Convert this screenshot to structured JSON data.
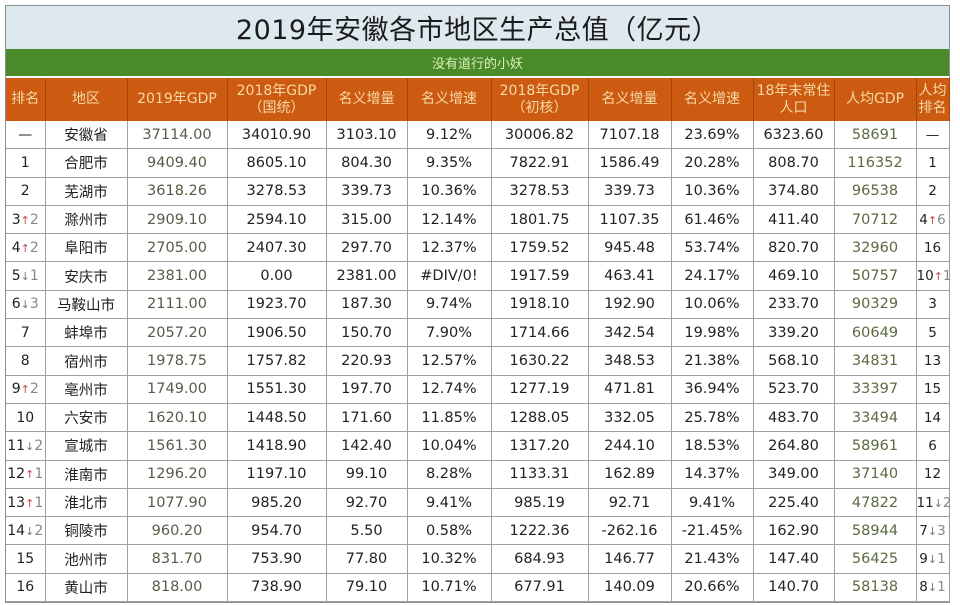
{
  "title": "2019年安徽各市地区生产总值（亿元）",
  "subtitle": "没有道行的小妖",
  "colors": {
    "title_bg": "#dde9ef",
    "subtitle_bg": "#4b8a2a",
    "header_bg": "#cc5a10",
    "header_text": "#f6d9a6"
  },
  "columns": [
    {
      "label": "排名"
    },
    {
      "label": "地区"
    },
    {
      "label": "2019年GDP"
    },
    {
      "label": "2018年GDP",
      "sub": "（国统）"
    },
    {
      "label": "名义增量"
    },
    {
      "label": "名义增速"
    },
    {
      "label": "2018年GDP",
      "sub": "（初核）"
    },
    {
      "label": "名义增量"
    },
    {
      "label": "名义增速"
    },
    {
      "label": "18年末常住",
      "sub": "人口"
    },
    {
      "label": "人均GDP"
    },
    {
      "label": "人均",
      "sub": "排名"
    }
  ],
  "rows": [
    {
      "rank": "—",
      "rank_dir": "",
      "rank_chg": "",
      "region": "安徽省",
      "gdp2019": "37114.00",
      "gdp2018_nbs": "34010.90",
      "inc1": "3103.10",
      "rate1": "9.12%",
      "gdp2018_prelim": "30006.82",
      "inc2": "7107.18",
      "rate2": "23.69%",
      "pop": "6323.60",
      "pc_gdp": "58691",
      "pc_rank": "—",
      "pc_dir": "",
      "pc_chg": ""
    },
    {
      "rank": "1",
      "rank_dir": "",
      "rank_chg": "",
      "region": "合肥市",
      "gdp2019": "9409.40",
      "gdp2018_nbs": "8605.10",
      "inc1": "804.30",
      "rate1": "9.35%",
      "gdp2018_prelim": "7822.91",
      "inc2": "1586.49",
      "rate2": "20.28%",
      "pop": "808.70",
      "pc_gdp": "116352",
      "pc_rank": "1",
      "pc_dir": "",
      "pc_chg": ""
    },
    {
      "rank": "2",
      "rank_dir": "",
      "rank_chg": "",
      "region": "芜湖市",
      "gdp2019": "3618.26",
      "gdp2018_nbs": "3278.53",
      "inc1": "339.73",
      "rate1": "10.36%",
      "gdp2018_prelim": "3278.53",
      "inc2": "339.73",
      "rate2": "10.36%",
      "pop": "374.80",
      "pc_gdp": "96538",
      "pc_rank": "2",
      "pc_dir": "",
      "pc_chg": ""
    },
    {
      "rank": "3",
      "rank_dir": "↑",
      "rank_chg": "2",
      "region": "滁州市",
      "gdp2019": "2909.10",
      "gdp2018_nbs": "2594.10",
      "inc1": "315.00",
      "rate1": "12.14%",
      "gdp2018_prelim": "1801.75",
      "inc2": "1107.35",
      "rate2": "61.46%",
      "pop": "411.40",
      "pc_gdp": "70712",
      "pc_rank": "4",
      "pc_dir": "↑",
      "pc_chg": "6"
    },
    {
      "rank": "4",
      "rank_dir": "↑",
      "rank_chg": "2",
      "region": "阜阳市",
      "gdp2019": "2705.00",
      "gdp2018_nbs": "2407.30",
      "inc1": "297.70",
      "rate1": "12.37%",
      "gdp2018_prelim": "1759.52",
      "inc2": "945.48",
      "rate2": "53.74%",
      "pop": "820.70",
      "pc_gdp": "32960",
      "pc_rank": "16",
      "pc_dir": "",
      "pc_chg": ""
    },
    {
      "rank": "5",
      "rank_dir": "↓",
      "rank_chg": "1",
      "region": "安庆市",
      "gdp2019": "2381.00",
      "gdp2018_nbs": "0.00",
      "inc1": "2381.00",
      "rate1": "#DIV/0!",
      "gdp2018_prelim": "1917.59",
      "inc2": "463.41",
      "rate2": "24.17%",
      "pop": "469.10",
      "pc_gdp": "50757",
      "pc_rank": "10",
      "pc_dir": "↑",
      "pc_chg": "1"
    },
    {
      "rank": "6",
      "rank_dir": "↓",
      "rank_chg": "3",
      "region": "马鞍山市",
      "gdp2019": "2111.00",
      "gdp2018_nbs": "1923.70",
      "inc1": "187.30",
      "rate1": "9.74%",
      "gdp2018_prelim": "1918.10",
      "inc2": "192.90",
      "rate2": "10.06%",
      "pop": "233.70",
      "pc_gdp": "90329",
      "pc_rank": "3",
      "pc_dir": "",
      "pc_chg": ""
    },
    {
      "rank": "7",
      "rank_dir": "",
      "rank_chg": "",
      "region": "蚌埠市",
      "gdp2019": "2057.20",
      "gdp2018_nbs": "1906.50",
      "inc1": "150.70",
      "rate1": "7.90%",
      "gdp2018_prelim": "1714.66",
      "inc2": "342.54",
      "rate2": "19.98%",
      "pop": "339.20",
      "pc_gdp": "60649",
      "pc_rank": "5",
      "pc_dir": "",
      "pc_chg": ""
    },
    {
      "rank": "8",
      "rank_dir": "",
      "rank_chg": "",
      "region": "宿州市",
      "gdp2019": "1978.75",
      "gdp2018_nbs": "1757.82",
      "inc1": "220.93",
      "rate1": "12.57%",
      "gdp2018_prelim": "1630.22",
      "inc2": "348.53",
      "rate2": "21.38%",
      "pop": "568.10",
      "pc_gdp": "34831",
      "pc_rank": "13",
      "pc_dir": "",
      "pc_chg": ""
    },
    {
      "rank": "9",
      "rank_dir": "↑",
      "rank_chg": "2",
      "region": "亳州市",
      "gdp2019": "1749.00",
      "gdp2018_nbs": "1551.30",
      "inc1": "197.70",
      "rate1": "12.74%",
      "gdp2018_prelim": "1277.19",
      "inc2": "471.81",
      "rate2": "36.94%",
      "pop": "523.70",
      "pc_gdp": "33397",
      "pc_rank": "15",
      "pc_dir": "",
      "pc_chg": ""
    },
    {
      "rank": "10",
      "rank_dir": "",
      "rank_chg": "",
      "region": "六安市",
      "gdp2019": "1620.10",
      "gdp2018_nbs": "1448.50",
      "inc1": "171.60",
      "rate1": "11.85%",
      "gdp2018_prelim": "1288.05",
      "inc2": "332.05",
      "rate2": "25.78%",
      "pop": "483.70",
      "pc_gdp": "33494",
      "pc_rank": "14",
      "pc_dir": "",
      "pc_chg": ""
    },
    {
      "rank": "11",
      "rank_dir": "↓",
      "rank_chg": "2",
      "region": "宣城市",
      "gdp2019": "1561.30",
      "gdp2018_nbs": "1418.90",
      "inc1": "142.40",
      "rate1": "10.04%",
      "gdp2018_prelim": "1317.20",
      "inc2": "244.10",
      "rate2": "18.53%",
      "pop": "264.80",
      "pc_gdp": "58961",
      "pc_rank": "6",
      "pc_dir": "",
      "pc_chg": ""
    },
    {
      "rank": "12",
      "rank_dir": "↑",
      "rank_chg": "1",
      "region": "淮南市",
      "gdp2019": "1296.20",
      "gdp2018_nbs": "1197.10",
      "inc1": "99.10",
      "rate1": "8.28%",
      "gdp2018_prelim": "1133.31",
      "inc2": "162.89",
      "rate2": "14.37%",
      "pop": "349.00",
      "pc_gdp": "37140",
      "pc_rank": "12",
      "pc_dir": "",
      "pc_chg": ""
    },
    {
      "rank": "13",
      "rank_dir": "↑",
      "rank_chg": "1",
      "region": "淮北市",
      "gdp2019": "1077.90",
      "gdp2018_nbs": "985.20",
      "inc1": "92.70",
      "rate1": "9.41%",
      "gdp2018_prelim": "985.19",
      "inc2": "92.71",
      "rate2": "9.41%",
      "pop": "225.40",
      "pc_gdp": "47822",
      "pc_rank": "11",
      "pc_dir": "↓",
      "pc_chg": "2"
    },
    {
      "rank": "14",
      "rank_dir": "↓",
      "rank_chg": "2",
      "region": "铜陵市",
      "gdp2019": "960.20",
      "gdp2018_nbs": "954.70",
      "inc1": "5.50",
      "rate1": "0.58%",
      "gdp2018_prelim": "1222.36",
      "inc2": "-262.16",
      "rate2": "-21.45%",
      "pop": "162.90",
      "pc_gdp": "58944",
      "pc_rank": "7",
      "pc_dir": "↓",
      "pc_chg": "3"
    },
    {
      "rank": "15",
      "rank_dir": "",
      "rank_chg": "",
      "region": "池州市",
      "gdp2019": "831.70",
      "gdp2018_nbs": "753.90",
      "inc1": "77.80",
      "rate1": "10.32%",
      "gdp2018_prelim": "684.93",
      "inc2": "146.77",
      "rate2": "21.43%",
      "pop": "147.40",
      "pc_gdp": "56425",
      "pc_rank": "9",
      "pc_dir": "↓",
      "pc_chg": "1"
    },
    {
      "rank": "16",
      "rank_dir": "",
      "rank_chg": "",
      "region": "黄山市",
      "gdp2019": "818.00",
      "gdp2018_nbs": "738.90",
      "inc1": "79.10",
      "rate1": "10.71%",
      "gdp2018_prelim": "677.91",
      "inc2": "140.09",
      "rate2": "20.66%",
      "pop": "140.70",
      "pc_gdp": "58138",
      "pc_rank": "8",
      "pc_dir": "↓",
      "pc_chg": "1"
    }
  ]
}
